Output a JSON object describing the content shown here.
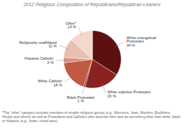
{
  "chart_data": {
    "type": "pie",
    "title": "2012 Religious Composition of Republicans/Republican Leaners",
    "categories": [
      "White evangelical\nProtestant",
      "White mainline Protestant",
      "Black Protestant",
      "White Catholic",
      "Hispanic Catholic",
      "Religiously unaffiliated",
      "Other*"
    ],
    "values": [
      34,
      20,
      1,
      18,
      3,
      11,
      13
    ],
    "value_labels": [
      "34 %",
      "20 %",
      "1 %",
      "18 %",
      "3 %",
      "11 %",
      "13 %"
    ],
    "data_labels": true,
    "colors": [
      "#5C1010",
      "#8B2222",
      "#7A3535",
      "#C05A40",
      "#D49080",
      "#E8BFB0",
      "#F5D8CC"
    ],
    "annotations": [
      "*The \"other\" category includes members of smaller religious groups (e.g., Mormons, Jews, Muslims, Buddhists, Hindus and others) as well as Protestants and Catholics who describe their race as something other than white, black or Hispanic (e.g., Asian, mixed race)."
    ]
  }
}
